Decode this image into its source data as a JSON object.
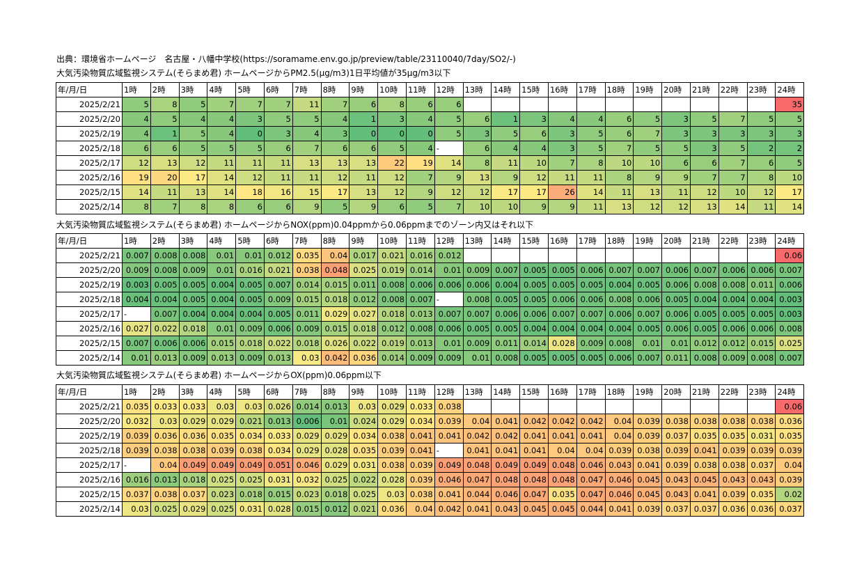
{
  "source_line": "出典：環境省ホームページ　名古屋・八幡中学校(https://soramame.env.go.jp/preview/table/23110040/7day/SO2/-)",
  "header_row": [
    "年/月/日",
    "1時",
    "2時",
    "3時",
    "4時",
    "5時",
    "6時",
    "7時",
    "8時",
    "9時",
    "10時",
    "11時",
    "12時",
    "13時",
    "14時",
    "15時",
    "16時",
    "17時",
    "18時",
    "19時",
    "20時",
    "21時",
    "22時",
    "23時",
    "24時"
  ],
  "colors": {
    "green": "#63be7b",
    "yellow": "#ffeb84",
    "red": "#f8696b"
  },
  "tables": [
    {
      "caption": "大気汚染物質広域監視システム(そらまめ君) ホームページからPM2.5(μg/m3)1日平均値が35μg/m3以下",
      "min": 0,
      "max": 35,
      "rows": [
        {
          "date": "2025/2/21",
          "values": [
            "5",
            "8",
            "5",
            "7",
            "7",
            "7",
            "11",
            "7",
            "6",
            "8",
            "6",
            "6",
            "",
            "",
            "",
            "",
            "",
            "",
            "",
            "",
            "",
            "",
            "",
            "35"
          ]
        },
        {
          "date": "2025/2/20",
          "values": [
            "4",
            "5",
            "4",
            "4",
            "3",
            "5",
            "5",
            "4",
            "1",
            "3",
            "4",
            "5",
            "6",
            "1",
            "3",
            "4",
            "4",
            "6",
            "5",
            "3",
            "5",
            "7",
            "5",
            "5"
          ]
        },
        {
          "date": "2025/2/19",
          "values": [
            "4",
            "1",
            "5",
            "4",
            "0",
            "3",
            "4",
            "3",
            "0",
            "0",
            "0",
            "5",
            "3",
            "5",
            "6",
            "3",
            "5",
            "6",
            "7",
            "3",
            "3",
            "3",
            "3",
            "3"
          ]
        },
        {
          "date": "2025/2/18",
          "values": [
            "6",
            "6",
            "5",
            "5",
            "5",
            "6",
            "7",
            "6",
            "6",
            "5",
            "4",
            "-",
            "6",
            "4",
            "4",
            "3",
            "5",
            "7",
            "5",
            "5",
            "3",
            "5",
            "2",
            "2"
          ]
        },
        {
          "date": "2025/2/17",
          "values": [
            "12",
            "13",
            "12",
            "11",
            "11",
            "11",
            "13",
            "13",
            "13",
            "22",
            "19",
            "14",
            "8",
            "11",
            "10",
            "7",
            "8",
            "10",
            "10",
            "6",
            "6",
            "7",
            "6",
            "5"
          ]
        },
        {
          "date": "2025/2/16",
          "values": [
            "19",
            "20",
            "17",
            "14",
            "12",
            "11",
            "11",
            "12",
            "11",
            "12",
            "7",
            "9",
            "13",
            "9",
            "12",
            "11",
            "11",
            "8",
            "9",
            "9",
            "7",
            "7",
            "8",
            "10"
          ]
        },
        {
          "date": "2025/2/15",
          "values": [
            "14",
            "11",
            "13",
            "14",
            "18",
            "16",
            "15",
            "17",
            "13",
            "12",
            "9",
            "12",
            "12",
            "17",
            "17",
            "26",
            "14",
            "11",
            "13",
            "11",
            "12",
            "10",
            "12",
            "17"
          ]
        },
        {
          "date": "2025/2/14",
          "values": [
            "8",
            "7",
            "8",
            "8",
            "6",
            "6",
            "9",
            "5",
            "9",
            "6",
            "5",
            "7",
            "10",
            "10",
            "9",
            "9",
            "11",
            "13",
            "12",
            "12",
            "13",
            "14",
            "11",
            "14"
          ]
        }
      ]
    },
    {
      "caption": "大気汚染物質広域監視システム(そらまめ君) ホームページからNOX(ppm)0.04ppmから0.06ppmまでのゾーン内又はそれ以下",
      "min": 0.003,
      "max": 0.06,
      "rows": [
        {
          "date": "2025/2/21",
          "values": [
            "0.007",
            "0.008",
            "0.008",
            "0.01",
            "0.01",
            "0.012",
            "0.035",
            "0.04",
            "0.017",
            "0.021",
            "0.016",
            "0.012",
            "",
            "",
            "",
            "",
            "",
            "",
            "",
            "",
            "",
            "",
            "",
            "0.06"
          ]
        },
        {
          "date": "2025/2/20",
          "values": [
            "0.009",
            "0.008",
            "0.009",
            "0.01",
            "0.016",
            "0.021",
            "0.038",
            "0.048",
            "0.025",
            "0.019",
            "0.014",
            "0.01",
            "0.009",
            "0.007",
            "0.005",
            "0.005",
            "0.006",
            "0.007",
            "0.007",
            "0.006",
            "0.007",
            "0.006",
            "0.006",
            "0.007"
          ]
        },
        {
          "date": "2025/2/19",
          "values": [
            "0.003",
            "0.005",
            "0.005",
            "0.004",
            "0.005",
            "0.007",
            "0.014",
            "0.015",
            "0.011",
            "0.008",
            "0.006",
            "0.006",
            "0.006",
            "0.004",
            "0.005",
            "0.005",
            "0.005",
            "0.004",
            "0.005",
            "0.006",
            "0.008",
            "0.008",
            "0.011",
            "0.006"
          ]
        },
        {
          "date": "2025/2/18",
          "values": [
            "0.004",
            "0.004",
            "0.005",
            "0.004",
            "0.005",
            "0.009",
            "0.015",
            "0.018",
            "0.012",
            "0.008",
            "0.007",
            "-",
            "0.008",
            "0.005",
            "0.005",
            "0.006",
            "0.006",
            "0.008",
            "0.006",
            "0.005",
            "0.004",
            "0.004",
            "0.004",
            "0.003"
          ]
        },
        {
          "date": "2025/2/17",
          "values": [
            "-",
            "0.007",
            "0.004",
            "0.004",
            "0.004",
            "0.005",
            "0.011",
            "0.029",
            "0.027",
            "0.018",
            "0.013",
            "0.007",
            "0.007",
            "0.006",
            "0.006",
            "0.007",
            "0.007",
            "0.006",
            "0.007",
            "0.006",
            "0.005",
            "0.005",
            "0.005",
            "0.003"
          ]
        },
        {
          "date": "2025/2/16",
          "values": [
            "0.027",
            "0.022",
            "0.018",
            "0.01",
            "0.009",
            "0.006",
            "0.009",
            "0.015",
            "0.018",
            "0.012",
            "0.008",
            "0.006",
            "0.005",
            "0.005",
            "0.004",
            "0.004",
            "0.004",
            "0.004",
            "0.005",
            "0.006",
            "0.005",
            "0.006",
            "0.006",
            "0.008"
          ]
        },
        {
          "date": "2025/2/15",
          "values": [
            "0.007",
            "0.006",
            "0.006",
            "0.015",
            "0.018",
            "0.022",
            "0.018",
            "0.026",
            "0.022",
            "0.019",
            "0.013",
            "0.01",
            "0.009",
            "0.011",
            "0.014",
            "0.028",
            "0.009",
            "0.008",
            "0.01",
            "0.01",
            "0.012",
            "0.012",
            "0.015",
            "0.025"
          ]
        },
        {
          "date": "2025/2/14",
          "values": [
            "0.01",
            "0.013",
            "0.009",
            "0.013",
            "0.009",
            "0.013",
            "0.03",
            "0.042",
            "0.036",
            "0.014",
            "0.009",
            "0.009",
            "0.01",
            "0.008",
            "0.005",
            "0.005",
            "0.005",
            "0.006",
            "0.007",
            "0.011",
            "0.008",
            "0.009",
            "0.008",
            "0.007"
          ]
        }
      ]
    },
    {
      "caption": "大気汚染物質広域監視システム(そらまめ君) ホームページからOX(ppm)0.06ppm以下",
      "min": 0.006,
      "max": 0.06,
      "rows": [
        {
          "date": "2025/2/21",
          "values": [
            "0.035",
            "0.033",
            "0.033",
            "0.03",
            "0.03",
            "0.026",
            "0.014",
            "0.013",
            "0.03",
            "0.029",
            "0.033",
            "0.038",
            "",
            "",
            "",
            "",
            "",
            "",
            "",
            "",
            "",
            "",
            "",
            "0.06"
          ]
        },
        {
          "date": "2025/2/20",
          "values": [
            "0.032",
            "0.03",
            "0.029",
            "0.029",
            "0.021",
            "0.013",
            "0.006",
            "0.01",
            "0.024",
            "0.029",
            "0.034",
            "0.039",
            "0.04",
            "0.041",
            "0.042",
            "0.042",
            "0.042",
            "0.04",
            "0.039",
            "0.038",
            "0.038",
            "0.038",
            "0.038",
            "0.036"
          ]
        },
        {
          "date": "2025/2/19",
          "values": [
            "0.039",
            "0.036",
            "0.036",
            "0.035",
            "0.034",
            "0.033",
            "0.029",
            "0.029",
            "0.034",
            "0.038",
            "0.041",
            "0.041",
            "0.042",
            "0.042",
            "0.041",
            "0.041",
            "0.041",
            "0.04",
            "0.039",
            "0.037",
            "0.035",
            "0.035",
            "0.031",
            "0.035"
          ]
        },
        {
          "date": "2025/2/18",
          "values": [
            "0.039",
            "0.038",
            "0.038",
            "0.039",
            "0.038",
            "0.034",
            "0.029",
            "0.028",
            "0.035",
            "0.039",
            "0.041",
            "-",
            "0.041",
            "0.041",
            "0.041",
            "0.04",
            "0.04",
            "0.039",
            "0.038",
            "0.039",
            "0.041",
            "0.039",
            "0.039",
            "0.039"
          ]
        },
        {
          "date": "2025/2/17",
          "values": [
            "-",
            "0.04",
            "0.049",
            "0.049",
            "0.049",
            "0.051",
            "0.046",
            "0.029",
            "0.031",
            "0.038",
            "0.039",
            "0.049",
            "0.048",
            "0.049",
            "0.049",
            "0.048",
            "0.046",
            "0.043",
            "0.041",
            "0.039",
            "0.038",
            "0.038",
            "0.037",
            "0.04"
          ]
        },
        {
          "date": "2025/2/16",
          "values": [
            "0.016",
            "0.013",
            "0.018",
            "0.025",
            "0.025",
            "0.031",
            "0.032",
            "0.025",
            "0.022",
            "0.028",
            "0.039",
            "0.046",
            "0.047",
            "0.048",
            "0.048",
            "0.048",
            "0.047",
            "0.046",
            "0.045",
            "0.043",
            "0.045",
            "0.043",
            "0.043",
            "0.039"
          ]
        },
        {
          "date": "2025/2/15",
          "values": [
            "0.037",
            "0.038",
            "0.037",
            "0.023",
            "0.018",
            "0.015",
            "0.023",
            "0.018",
            "0.025",
            "0.03",
            "0.038",
            "0.041",
            "0.044",
            "0.046",
            "0.047",
            "0.035",
            "0.047",
            "0.046",
            "0.045",
            "0.043",
            "0.041",
            "0.039",
            "0.035",
            "0.02"
          ]
        },
        {
          "date": "2025/2/14",
          "values": [
            "0.03",
            "0.025",
            "0.029",
            "0.025",
            "0.031",
            "0.028",
            "0.015",
            "0.012",
            "0.021",
            "0.036",
            "0.04",
            "0.042",
            "0.041",
            "0.043",
            "0.045",
            "0.045",
            "0.044",
            "0.041",
            "0.039",
            "0.037",
            "0.037",
            "0.036",
            "0.036",
            "0.037"
          ]
        }
      ]
    }
  ]
}
